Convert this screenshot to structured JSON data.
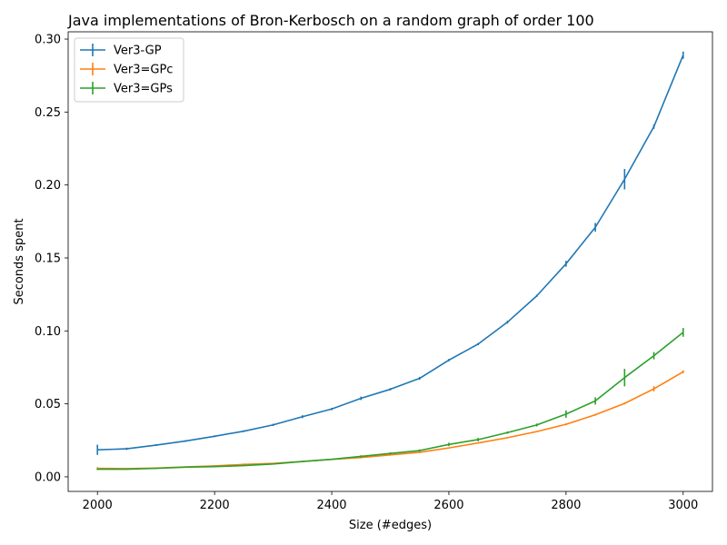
{
  "chart_data": {
    "type": "line",
    "title": "Java implementations of Bron-Kerbosch on a random graph of order 100",
    "xlabel": "Size (#edges)",
    "ylabel": "Seconds spent",
    "xlim": [
      1950,
      3050
    ],
    "ylim": [
      -0.01,
      0.305
    ],
    "xticks": [
      2000,
      2200,
      2400,
      2600,
      2800,
      3000
    ],
    "yticks": [
      0.0,
      0.05,
      0.1,
      0.15,
      0.2,
      0.25,
      0.3
    ],
    "ytick_labels": [
      "0.00",
      "0.05",
      "0.10",
      "0.15",
      "0.20",
      "0.25",
      "0.30"
    ],
    "grid": false,
    "legend_position": "top-left",
    "x": [
      2000,
      2050,
      2100,
      2150,
      2200,
      2250,
      2300,
      2350,
      2400,
      2450,
      2500,
      2550,
      2600,
      2650,
      2700,
      2750,
      2800,
      2850,
      2900,
      2950,
      3000
    ],
    "series": [
      {
        "name": "Ver3-GP",
        "color": "#1f77b4",
        "values": [
          0.0185,
          0.0192,
          0.0217,
          0.0245,
          0.0278,
          0.0313,
          0.0356,
          0.0412,
          0.0465,
          0.0538,
          0.06,
          0.0675,
          0.08,
          0.091,
          0.106,
          0.124,
          0.146,
          0.171,
          0.204,
          0.24,
          0.289
        ],
        "err": [
          0.0035,
          0.0008,
          0.0006,
          0.0006,
          0.0006,
          0.0006,
          0.0008,
          0.001,
          0.0008,
          0.0012,
          0.0008,
          0.001,
          0.0008,
          0.0008,
          0.001,
          0.0008,
          0.002,
          0.003,
          0.007,
          0.0015,
          0.0025
        ]
      },
      {
        "name": "Ver3=GPc",
        "color": "#ff7f0e",
        "values": [
          0.0058,
          0.0056,
          0.006,
          0.0068,
          0.0075,
          0.0085,
          0.0092,
          0.0105,
          0.012,
          0.0132,
          0.015,
          0.0168,
          0.0198,
          0.0232,
          0.0268,
          0.031,
          0.036,
          0.0425,
          0.0503,
          0.0603,
          0.072
        ],
        "err": [
          0.0008,
          0.0004,
          0.0004,
          0.0004,
          0.0004,
          0.0006,
          0.0004,
          0.0004,
          0.0004,
          0.0004,
          0.0004,
          0.0004,
          0.0004,
          0.0004,
          0.0004,
          0.0004,
          0.0006,
          0.0006,
          0.0006,
          0.0018,
          0.001
        ]
      },
      {
        "name": "Ver3=GPs",
        "color": "#2ca02c",
        "values": [
          0.0052,
          0.0052,
          0.0058,
          0.0066,
          0.007,
          0.0077,
          0.0088,
          0.0105,
          0.012,
          0.014,
          0.016,
          0.018,
          0.0222,
          0.0255,
          0.0303,
          0.0355,
          0.043,
          0.052,
          0.068,
          0.083,
          0.099
        ],
        "err": [
          0.0006,
          0.0004,
          0.0004,
          0.0004,
          0.0004,
          0.0004,
          0.0004,
          0.0004,
          0.0004,
          0.0008,
          0.0008,
          0.0008,
          0.0012,
          0.0012,
          0.0008,
          0.001,
          0.0025,
          0.0025,
          0.006,
          0.0025,
          0.003
        ]
      }
    ]
  }
}
